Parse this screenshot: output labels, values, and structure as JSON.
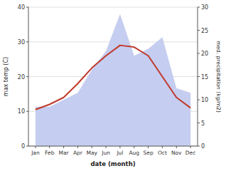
{
  "chart_data": {
    "type": "line",
    "xlabel": "date (month)",
    "ylabel": "max temp (C)",
    "y2label": "med. precipitation (kg/m2)",
    "categories": [
      "Jan",
      "Feb",
      "Mar",
      "Apr",
      "May",
      "Jun",
      "Jul",
      "Aug",
      "Sep",
      "Oct",
      "Nov",
      "Dec"
    ],
    "series": [
      {
        "type": "area",
        "axis": "y2",
        "color": "#c5cdf0",
        "values": [
          8.5,
          8.5,
          10.0,
          11.5,
          16.5,
          20.5,
          28.5,
          19.5,
          21.0,
          23.5,
          12.5,
          11.5
        ]
      },
      {
        "type": "line",
        "color": "#c0392b",
        "values": [
          10.5,
          12.0,
          14.0,
          18.0,
          22.5,
          26.0,
          29.0,
          28.5,
          26.0,
          20.0,
          14.0,
          11.0
        ]
      }
    ],
    "ylim": [
      0,
      40
    ],
    "yticks": [
      0,
      10,
      20,
      30,
      40
    ],
    "y2lim": [
      0,
      30
    ],
    "y2ticks": [
      0,
      5,
      10,
      15,
      20,
      25,
      30
    ],
    "grid": true
  }
}
